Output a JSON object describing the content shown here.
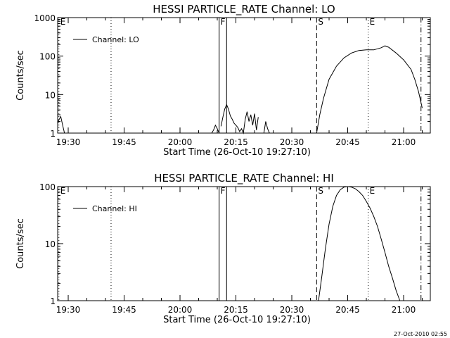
{
  "chart_data": [
    {
      "type": "line",
      "title": "HESSI PARTICLE_RATE Channel: LO",
      "xlabel": "Start Time (26-Oct-10 19:27:10)",
      "ylabel": "Counts/sec",
      "y_scale": "log",
      "ylim": [
        1,
        1000
      ],
      "xlim": [
        "19:27:10",
        "21:07:10"
      ],
      "x_ticks": [
        "19:30",
        "19:45",
        "20:00",
        "20:15",
        "20:30",
        "20:45",
        "21:00"
      ],
      "y_ticks": [
        "1",
        "10",
        "100",
        "1000"
      ],
      "legend": {
        "position": "top-left",
        "entries": [
          "Channel: LO"
        ]
      },
      "markers": [
        {
          "label": "E",
          "time": "19:27:30",
          "style": "dotted"
        },
        {
          "label": "",
          "time": "19:41:30",
          "style": "dotted"
        },
        {
          "label": "F",
          "time": "20:10:30",
          "style": "solid"
        },
        {
          "label": "",
          "time": "20:12:30",
          "style": "solid"
        },
        {
          "label": "S",
          "time": "20:36:40",
          "style": "dashed"
        },
        {
          "label": "E",
          "time": "20:50:30",
          "style": "dotted"
        },
        {
          "label": "",
          "time": "21:04:40",
          "style": "dashdot"
        }
      ],
      "series": [
        {
          "name": "Channel: LO",
          "segments": [
            {
              "x": [
                "19:27:10",
                "19:27:30",
                "19:28:00",
                "19:28:30",
                "19:29:00"
              ],
              "y": [
                1.8,
                2.2,
                2.7,
                1.6,
                1.0
              ]
            },
            {
              "x": [
                "20:08:30",
                "20:09:00",
                "20:09:30",
                "20:10:00",
                "20:10:30"
              ],
              "y": [
                1.0,
                1.2,
                1.6,
                1.3,
                1.0
              ]
            },
            {
              "x": [
                "20:11:00",
                "20:11:30",
                "20:12:00",
                "20:12:30",
                "20:13:00",
                "20:13:30",
                "20:14:00",
                "20:14:30",
                "20:15:00",
                "20:15:30",
                "20:16:00",
                "20:16:30",
                "20:17:00",
                "20:17:30",
                "20:18:00",
                "20:18:30",
                "20:19:00",
                "20:19:30",
                "20:20:00",
                "20:20:30",
                "20:21:00"
              ],
              "y": [
                1.5,
                2.6,
                4.2,
                5.5,
                4.2,
                2.8,
                2.3,
                1.8,
                1.6,
                1.4,
                1.1,
                1.3,
                1.0,
                2.3,
                3.6,
                2.0,
                3.0,
                1.6,
                3.2,
                1.2,
                2.6
              ]
            },
            {
              "x": [
                "20:22:30",
                "20:23:00",
                "20:23:30",
                "20:24:00"
              ],
              "y": [
                1.0,
                2.0,
                1.3,
                1.0
              ]
            },
            {
              "x": [
                "20:36:40",
                "20:37:30",
                "20:38:30",
                "20:40:00",
                "20:42:00",
                "20:44:00",
                "20:46:00",
                "20:48:00",
                "20:50:00",
                "20:52:00",
                "20:54:00",
                "20:55:00",
                "20:56:00",
                "20:58:00",
                "21:00:00",
                "21:02:00",
                "21:03:00",
                "21:04:00",
                "21:05:00"
              ],
              "y": [
                1.0,
                3.0,
                8.0,
                25,
                55,
                90,
                120,
                140,
                145,
                145,
                165,
                185,
                170,
                120,
                80,
                45,
                25,
                12,
                4.5
              ]
            }
          ]
        }
      ],
      "timestamp": "27-Oct-2010 02:55"
    },
    {
      "type": "line",
      "title": "HESSI PARTICLE_RATE Channel: HI",
      "xlabel": "Start Time (26-Oct-10 19:27:10)",
      "ylabel": "Counts/sec",
      "y_scale": "log",
      "ylim": [
        1,
        100
      ],
      "xlim": [
        "19:27:10",
        "21:07:10"
      ],
      "x_ticks": [
        "19:30",
        "19:45",
        "20:00",
        "20:15",
        "20:30",
        "20:45",
        "21:00"
      ],
      "y_ticks": [
        "1",
        "10",
        "100"
      ],
      "legend": {
        "position": "top-left",
        "entries": [
          "Channel: HI"
        ]
      },
      "markers": [
        {
          "label": "E",
          "time": "19:27:30",
          "style": "dotted"
        },
        {
          "label": "",
          "time": "19:41:30",
          "style": "dotted"
        },
        {
          "label": "F",
          "time": "20:10:30",
          "style": "solid"
        },
        {
          "label": "",
          "time": "20:12:30",
          "style": "solid"
        },
        {
          "label": "S",
          "time": "20:36:40",
          "style": "dashed"
        },
        {
          "label": "E",
          "time": "20:50:30",
          "style": "dotted"
        },
        {
          "label": "",
          "time": "21:04:40",
          "style": "dashdot"
        }
      ],
      "series": [
        {
          "name": "Channel: HI",
          "segments": [
            {
              "x": [
                "20:37:10",
                "20:38:00",
                "20:39:00",
                "20:40:00",
                "20:41:00",
                "20:42:00",
                "20:43:00",
                "20:44:00",
                "20:45:00",
                "20:46:00",
                "20:47:00",
                "20:48:00",
                "20:49:00",
                "20:50:00",
                "20:51:00",
                "20:52:00",
                "20:53:00",
                "20:54:00",
                "20:55:00",
                "20:56:00",
                "20:57:00",
                "20:58:00",
                "20:59:00"
              ],
              "y": [
                1.0,
                2.5,
                8.0,
                22,
                45,
                70,
                88,
                98,
                100,
                98,
                92,
                82,
                70,
                55,
                42,
                30,
                20,
                12,
                7.0,
                4.0,
                2.5,
                1.5,
                1.0
              ]
            }
          ]
        }
      ]
    }
  ]
}
